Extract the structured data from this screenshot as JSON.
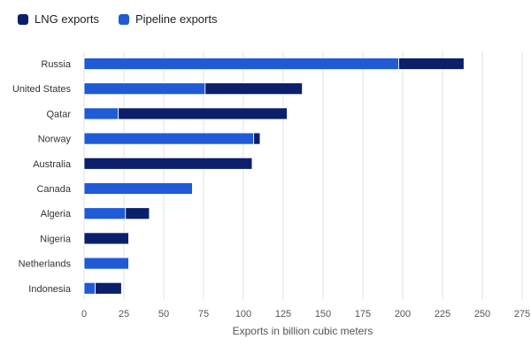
{
  "chart_data": {
    "type": "bar",
    "orientation": "horizontal",
    "stacked": true,
    "categories": [
      "Russia",
      "United States",
      "Qatar",
      "Norway",
      "Australia",
      "Canada",
      "Algeria",
      "Nigeria",
      "Netherlands",
      "Indonesia"
    ],
    "series": [
      {
        "name": "Pipeline exports",
        "color": "#1f5bd6",
        "values": [
          197.5,
          76,
          21.5,
          106.5,
          0,
          68,
          26,
          0,
          28,
          7
        ]
      },
      {
        "name": "LNG exports",
        "color": "#0b1f6b",
        "values": [
          41,
          61,
          106,
          4,
          105.5,
          0,
          15,
          28,
          0,
          16.5
        ]
      }
    ],
    "legend": {
      "position": "top-left",
      "items": [
        "LNG exports",
        "Pipeline exports"
      ]
    },
    "xlabel": "Exports in billion cubic meters",
    "xlim": [
      0,
      275
    ],
    "xticks": [
      0,
      25,
      50,
      75,
      100,
      125,
      150,
      175,
      200,
      225,
      250,
      275
    ],
    "grid": true
  }
}
